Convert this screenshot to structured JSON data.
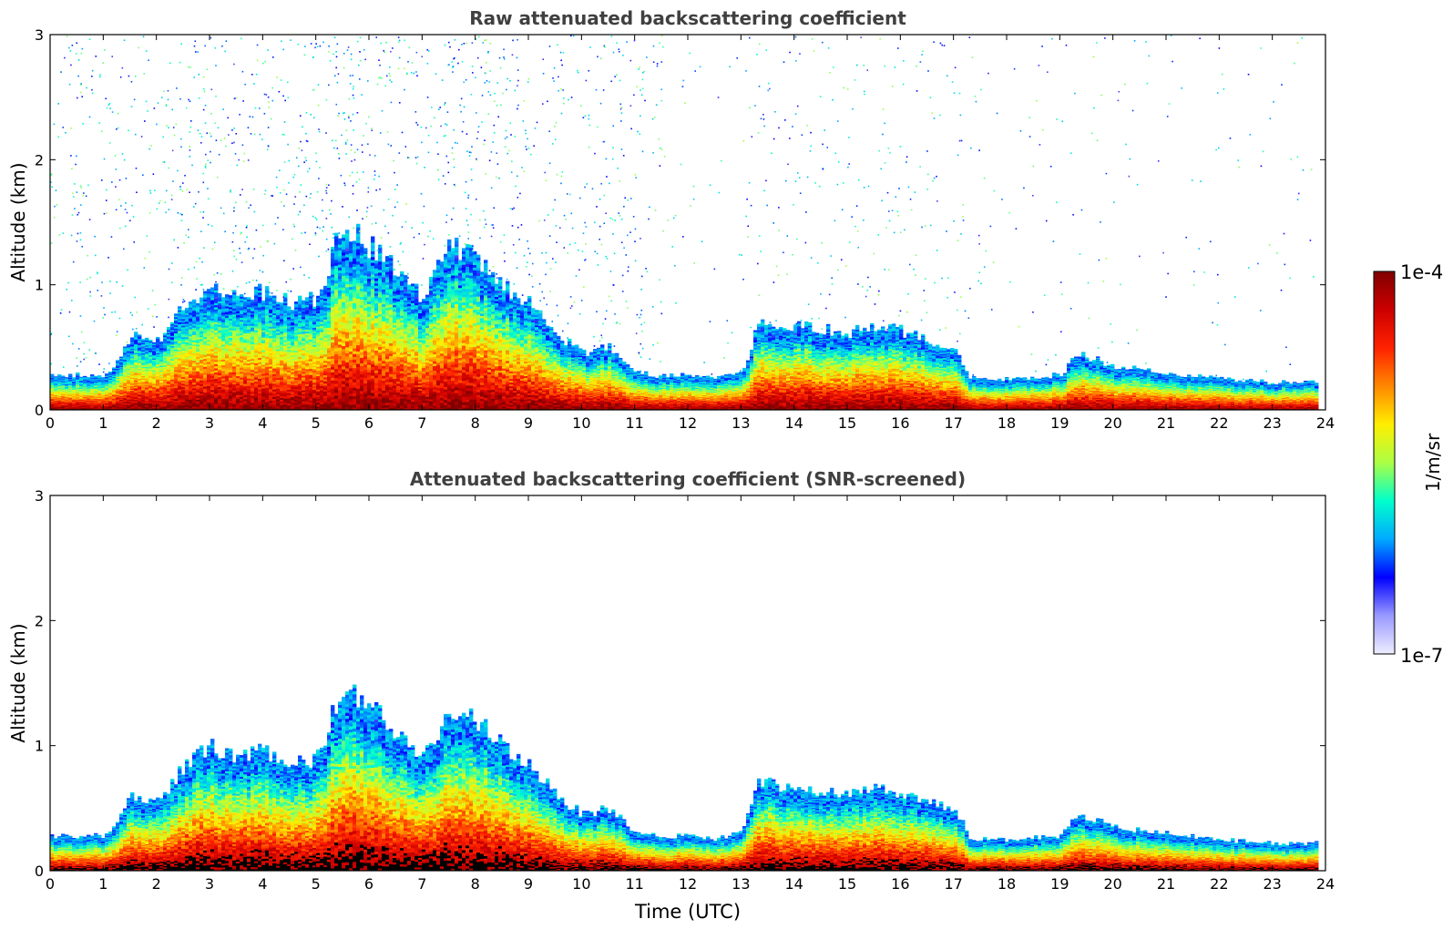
{
  "chart_data": [
    {
      "type": "heatmap",
      "title": "Raw attenuated backscattering coefficient",
      "xlabel": "",
      "ylabel": "Altitude (km)",
      "xlim": [
        0,
        24
      ],
      "ylim": [
        0,
        3
      ],
      "x_ticks": [
        "0",
        "1",
        "2",
        "3",
        "4",
        "5",
        "6",
        "7",
        "8",
        "9",
        "10",
        "11",
        "12",
        "13",
        "14",
        "15",
        "16",
        "17",
        "18",
        "19",
        "20",
        "21",
        "22",
        "23",
        "24"
      ],
      "y_ticks": [
        "0",
        "1",
        "2",
        "3"
      ],
      "grid": false,
      "boundary_layer_top_km": {
        "x": [
          0,
          1.0,
          1.2,
          1.5,
          2,
          2.5,
          3,
          3.5,
          4,
          4.5,
          5,
          5.5,
          6,
          6.5,
          7,
          7.5,
          8,
          8.5,
          9,
          9.5,
          10,
          10.5,
          11,
          11.5,
          12,
          12.5,
          13,
          13.3,
          14,
          15,
          15.5,
          16,
          16.5,
          17,
          17.3,
          18,
          19,
          19.3,
          20,
          21,
          22,
          23,
          23.8
        ],
        "y": [
          0.28,
          0.28,
          0.35,
          0.6,
          0.55,
          0.85,
          1.0,
          0.9,
          0.95,
          0.85,
          0.9,
          1.5,
          1.3,
          1.1,
          0.9,
          1.3,
          1.2,
          1.0,
          0.85,
          0.6,
          0.45,
          0.5,
          0.3,
          0.27,
          0.28,
          0.26,
          0.3,
          0.7,
          0.67,
          0.62,
          0.66,
          0.63,
          0.55,
          0.5,
          0.25,
          0.25,
          0.28,
          0.45,
          0.35,
          0.3,
          0.25,
          0.22,
          0.22
        ]
      }
    },
    {
      "type": "heatmap",
      "title": "Attenuated backscattering coefficient (SNR-screened)",
      "xlabel": "Time (UTC)",
      "ylabel": "Altitude (km)",
      "xlim": [
        0,
        24
      ],
      "ylim": [
        0,
        3
      ],
      "x_ticks": [
        "0",
        "1",
        "2",
        "3",
        "4",
        "5",
        "6",
        "7",
        "8",
        "9",
        "10",
        "11",
        "12",
        "13",
        "14",
        "15",
        "16",
        "17",
        "18",
        "19",
        "20",
        "21",
        "22",
        "23",
        "24"
      ],
      "y_ticks": [
        "0",
        "1",
        "2",
        "3"
      ],
      "grid": false
    }
  ],
  "colorbar": {
    "label": "1/m/sr",
    "max_label": "1e-4",
    "min_label": "1e-7",
    "colors": [
      "#eeeeff",
      "#9999ff",
      "#0000ff",
      "#00aaff",
      "#00ffcc",
      "#aaff44",
      "#ffee00",
      "#ff8800",
      "#ff2200",
      "#cc0000",
      "#800000"
    ]
  }
}
